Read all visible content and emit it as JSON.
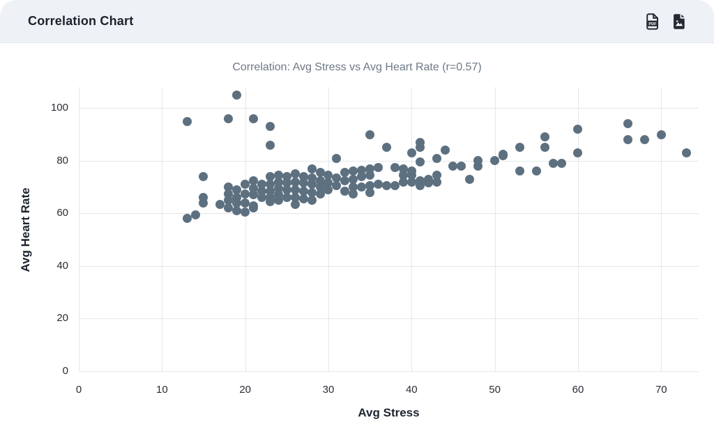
{
  "header": {
    "title": "Correlation Chart",
    "pdf_icon_text": "PDF"
  },
  "chart_data": {
    "type": "scatter",
    "title": "Correlation: Avg Stress vs Avg Heart Rate (r=0.57)",
    "xlabel": "Avg Stress",
    "ylabel": "Avg Heart Rate",
    "correlation_r": 0.57,
    "xlim": [
      0,
      74.5
    ],
    "ylim": [
      0,
      108
    ],
    "x_ticks": [
      0,
      10,
      20,
      30,
      40,
      50,
      60,
      70
    ],
    "y_ticks": [
      0,
      20,
      40,
      60,
      80,
      100
    ],
    "grid": true,
    "legend": false,
    "point_color": "#5d7080",
    "gridline_color": "#e4e7ea",
    "points": [
      [
        13,
        58
      ],
      [
        13,
        95
      ],
      [
        14,
        59.5
      ],
      [
        15,
        64
      ],
      [
        15,
        66
      ],
      [
        15,
        74
      ],
      [
        17,
        63.5
      ],
      [
        18,
        62
      ],
      [
        18,
        65
      ],
      [
        18,
        67.5
      ],
      [
        18,
        70
      ],
      [
        18,
        96
      ],
      [
        19,
        61
      ],
      [
        19,
        64
      ],
      [
        19,
        66
      ],
      [
        19,
        69
      ],
      [
        19,
        105
      ],
      [
        20,
        60.5
      ],
      [
        20,
        64
      ],
      [
        20,
        67.5
      ],
      [
        20,
        71
      ],
      [
        21,
        62
      ],
      [
        21,
        63
      ],
      [
        21,
        67
      ],
      [
        21,
        69.5
      ],
      [
        21,
        72.5
      ],
      [
        21,
        96
      ],
      [
        22,
        66
      ],
      [
        22,
        68.5
      ],
      [
        22,
        71
      ],
      [
        23,
        64.5
      ],
      [
        23,
        66
      ],
      [
        23,
        68.5
      ],
      [
        23,
        71
      ],
      [
        23,
        74
      ],
      [
        23,
        86
      ],
      [
        23,
        93
      ],
      [
        24,
        65
      ],
      [
        24,
        67
      ],
      [
        24,
        69.5
      ],
      [
        24,
        72
      ],
      [
        24,
        74.5
      ],
      [
        25,
        66
      ],
      [
        25,
        69
      ],
      [
        25,
        71.5
      ],
      [
        25,
        74
      ],
      [
        26,
        63.5
      ],
      [
        26,
        66
      ],
      [
        26,
        69
      ],
      [
        26,
        72
      ],
      [
        26,
        75
      ],
      [
        27,
        65.5
      ],
      [
        27,
        68.5
      ],
      [
        27,
        71.5
      ],
      [
        27,
        74
      ],
      [
        28,
        65
      ],
      [
        28,
        68
      ],
      [
        28,
        71
      ],
      [
        28,
        73.5
      ],
      [
        28,
        77
      ],
      [
        29,
        67.5
      ],
      [
        29,
        70
      ],
      [
        29,
        72.5
      ],
      [
        29,
        75.5
      ],
      [
        30,
        69
      ],
      [
        30,
        71.5
      ],
      [
        30,
        74.5
      ],
      [
        31,
        70.5
      ],
      [
        31,
        73.5
      ],
      [
        31,
        81
      ],
      [
        32,
        68.5
      ],
      [
        32,
        72.5
      ],
      [
        32,
        75.5
      ],
      [
        33,
        67.5
      ],
      [
        33,
        70
      ],
      [
        33,
        73
      ],
      [
        33,
        76
      ],
      [
        34,
        70
      ],
      [
        34,
        74
      ],
      [
        34,
        76.5
      ],
      [
        35,
        68
      ],
      [
        35,
        70.5
      ],
      [
        35,
        74.5
      ],
      [
        35,
        77
      ],
      [
        35,
        90
      ],
      [
        36,
        71
      ],
      [
        36,
        77.5
      ],
      [
        37,
        70.5
      ],
      [
        37,
        85
      ],
      [
        38,
        70.5
      ],
      [
        38,
        77.5
      ],
      [
        39,
        72
      ],
      [
        39,
        74.5
      ],
      [
        39,
        77
      ],
      [
        40,
        72
      ],
      [
        40,
        74.5
      ],
      [
        40,
        76
      ],
      [
        40,
        83
      ],
      [
        41,
        70.5
      ],
      [
        41,
        72.5
      ],
      [
        41,
        79.5
      ],
      [
        41,
        85
      ],
      [
        41,
        87
      ],
      [
        42,
        71.5
      ],
      [
        42,
        73
      ],
      [
        43,
        72
      ],
      [
        43,
        74.5
      ],
      [
        43,
        81
      ],
      [
        44,
        84
      ],
      [
        45,
        78
      ],
      [
        46,
        78
      ],
      [
        47,
        73
      ],
      [
        48,
        78
      ],
      [
        48,
        80
      ],
      [
        50,
        80
      ],
      [
        51,
        82
      ],
      [
        51,
        82.5
      ],
      [
        53,
        76
      ],
      [
        53,
        85
      ],
      [
        55,
        76
      ],
      [
        56,
        85
      ],
      [
        56,
        89
      ],
      [
        57,
        79
      ],
      [
        58,
        79
      ],
      [
        60,
        83
      ],
      [
        60,
        92
      ],
      [
        66,
        88
      ],
      [
        66,
        94
      ],
      [
        68,
        88
      ],
      [
        70,
        90
      ],
      [
        73,
        83
      ]
    ]
  }
}
